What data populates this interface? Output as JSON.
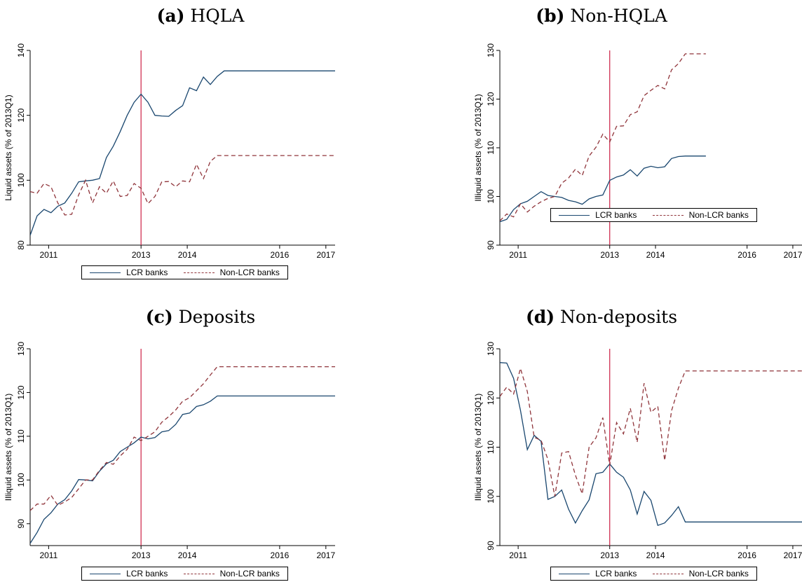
{
  "colors": {
    "lcr": "#1a476f",
    "non_lcr": "#90353b",
    "vline": "#cc1f44",
    "axis": "#000000"
  },
  "chart_data": [
    {
      "type": "line",
      "panel_label": "(a)",
      "title": "HQLA",
      "xlabel": "",
      "ylabel": "Liquid assets (% of 2013Q1)",
      "xlim": [
        2010.6,
        2017.2
      ],
      "ylim": [
        80,
        140
      ],
      "x_ticks": [
        2011,
        2013,
        2014,
        2016,
        2017
      ],
      "y_ticks": [
        80,
        100,
        120,
        140
      ],
      "vline_x": 2013,
      "grid": false,
      "legend": "bottom",
      "x": [
        2010.6,
        2010.75,
        2010.9,
        2011.05,
        2011.2,
        2011.35,
        2011.5,
        2011.65,
        2011.8,
        2011.95,
        2012.1,
        2012.25,
        2012.4,
        2012.55,
        2012.7,
        2012.85,
        2013.0,
        2013.15,
        2013.3,
        2013.45,
        2013.6,
        2013.75,
        2013.9,
        2014.05,
        2014.2,
        2014.35,
        2014.5,
        2014.65,
        2014.8,
        2014.95,
        2015.1,
        2015.25,
        2015.4,
        2015.55,
        2015.7,
        2015.85,
        2016.0,
        2016.15,
        2016.3,
        2016.45,
        2016.6,
        2016.75,
        2016.9,
        2017.05,
        2017.2
      ],
      "series": [
        {
          "name": "LCR banks",
          "values": [
            83,
            89,
            91,
            90,
            92,
            93,
            96,
            99.5,
            99.8,
            100,
            100.5,
            107,
            110.5,
            115,
            120,
            124,
            126.5,
            124,
            120,
            119.8,
            119.7,
            121.5,
            123,
            128.5,
            127.6,
            131.8,
            129.5,
            132,
            133.7,
            133.7,
            133.7,
            133.7,
            133.7,
            133.7,
            133.7,
            133.7,
            133.7,
            133.7,
            133.7,
            133.7,
            133.7,
            133.7,
            133.7,
            133.7,
            133.7
          ]
        },
        {
          "name": "Non-LCR banks",
          "values": [
            96.5,
            96,
            99,
            98,
            93,
            89.3,
            89.5,
            95.5,
            100,
            93,
            98,
            96,
            99.8,
            95,
            95.3,
            99,
            97.5,
            92.8,
            95,
            99.5,
            99.6,
            98,
            99.8,
            99.5,
            104.9,
            100.5,
            105.8,
            107.6,
            107.6,
            107.6,
            107.6,
            107.6,
            107.6,
            107.6,
            107.6,
            107.6,
            107.6,
            107.6,
            107.6,
            107.6,
            107.6,
            107.6,
            107.6,
            107.6,
            107.6
          ]
        }
      ]
    },
    {
      "type": "line",
      "panel_label": "(b)",
      "title": "Non-HQLA",
      "xlabel": "",
      "ylabel": "Illiquid assets (% of 2013Q1)",
      "xlim": [
        2010.6,
        2017.2
      ],
      "ylim": [
        90,
        130
      ],
      "x_ticks": [
        2011,
        2013,
        2014,
        2016,
        2017
      ],
      "y_ticks": [
        90,
        100,
        110,
        120,
        130
      ],
      "vline_x": 2013,
      "grid": false,
      "legend": "bottom",
      "x": [
        2010.6,
        2010.75,
        2010.9,
        2011.05,
        2011.2,
        2011.35,
        2011.5,
        2011.65,
        2011.8,
        2011.95,
        2012.1,
        2012.25,
        2012.4,
        2012.55,
        2012.7,
        2012.85,
        2013.0,
        2013.15,
        2013.3,
        2013.45,
        2013.6,
        2013.75,
        2013.9,
        2014.05,
        2014.2,
        2014.35,
        2014.5,
        2014.65,
        2014.8,
        2014.95,
        2015.1
      ],
      "series": [
        {
          "name": "LCR banks",
          "values": [
            94.8,
            95.3,
            97.3,
            98.5,
            99,
            100,
            101,
            100.2,
            100,
            99.8,
            99.2,
            98.9,
            98.4,
            99.5,
            100,
            100.3,
            103.3,
            104,
            104.4,
            105.5,
            104.2,
            105.8,
            106.2,
            105.9,
            106.1,
            107.8,
            108.2,
            108.3,
            108.3,
            108.3,
            108.3
          ]
        },
        {
          "name": "Non-LCR banks",
          "values": [
            95,
            96.4,
            95.8,
            98.5,
            96.8,
            98,
            98.9,
            99.6,
            100,
            102.7,
            103.8,
            105.6,
            104.3,
            108.3,
            110.1,
            112.8,
            111.2,
            114.4,
            114.5,
            116.8,
            117.4,
            120.7,
            121.8,
            122.8,
            122.1,
            126,
            127.3,
            129.3,
            129.3,
            129.3,
            129.3
          ]
        }
      ]
    },
    {
      "type": "line",
      "panel_label": "(c)",
      "title": "Deposits",
      "xlabel": "",
      "ylabel": "Illiquid assets (% of 2013Q1)",
      "xlim": [
        2010.6,
        2017.2
      ],
      "ylim": [
        85,
        130
      ],
      "x_ticks": [
        2011,
        2013,
        2014,
        2016,
        2017
      ],
      "y_ticks": [
        90,
        100,
        110,
        120,
        130
      ],
      "vline_x": 2013,
      "grid": false,
      "legend": "bottom",
      "x": [
        2010.6,
        2010.75,
        2010.9,
        2011.05,
        2011.2,
        2011.35,
        2011.5,
        2011.65,
        2011.8,
        2011.95,
        2012.1,
        2012.25,
        2012.4,
        2012.55,
        2012.7,
        2012.85,
        2013.0,
        2013.15,
        2013.3,
        2013.45,
        2013.6,
        2013.75,
        2013.9,
        2014.05,
        2014.2,
        2014.35,
        2014.5,
        2014.65,
        2014.8,
        2014.95,
        2015.1,
        2015.25,
        2015.4,
        2015.55,
        2015.7,
        2015.85,
        2016.0,
        2016.15,
        2016.3,
        2016.45,
        2016.6,
        2016.75,
        2016.9,
        2017.05,
        2017.2
      ],
      "series": [
        {
          "name": "LCR banks",
          "values": [
            85.5,
            88,
            91,
            92.5,
            94.5,
            95.5,
            97.5,
            100.1,
            100,
            99.8,
            102,
            103.7,
            104.5,
            106.5,
            107.5,
            108.5,
            109.8,
            109.4,
            109.7,
            111,
            111.3,
            112.7,
            115,
            115.3,
            116.8,
            117.2,
            118,
            119.2,
            119.2,
            119.2,
            119.2,
            119.2,
            119.2,
            119.2,
            119.2,
            119.2,
            119.2,
            119.2,
            119.2,
            119.2,
            119.2,
            119.2,
            119.2,
            119.2,
            119.2
          ]
        },
        {
          "name": "Non-LCR banks",
          "values": [
            93,
            94.5,
            94.5,
            96.5,
            94.2,
            95,
            96,
            98,
            100,
            100,
            102.2,
            104,
            103.6,
            105.5,
            107,
            109.8,
            109,
            110,
            111,
            113.2,
            114.5,
            116,
            118,
            118.8,
            120.4,
            122,
            124,
            125.9,
            125.9,
            125.9,
            125.9,
            125.9,
            125.9,
            125.9,
            125.9,
            125.9,
            125.9,
            125.9,
            125.9,
            125.9,
            125.9,
            125.9,
            125.9,
            125.9,
            125.9
          ]
        }
      ]
    },
    {
      "type": "line",
      "panel_label": "(d)",
      "title": "Non-deposits",
      "xlabel": "",
      "ylabel": "Illiquid assets (% of 2013Q1)",
      "xlim": [
        2010.6,
        2017.2
      ],
      "ylim": [
        90,
        130
      ],
      "x_ticks": [
        2011,
        2013,
        2014,
        2016,
        2017
      ],
      "y_ticks": [
        90,
        100,
        110,
        120,
        130
      ],
      "vline_x": 2013,
      "grid": false,
      "legend": "bottom",
      "x": [
        2010.6,
        2010.75,
        2010.9,
        2011.05,
        2011.2,
        2011.35,
        2011.5,
        2011.65,
        2011.8,
        2011.95,
        2012.1,
        2012.25,
        2012.4,
        2012.55,
        2012.7,
        2012.85,
        2013.0,
        2013.15,
        2013.3,
        2013.45,
        2013.6,
        2013.75,
        2013.9,
        2014.05,
        2014.2,
        2014.35,
        2014.5,
        2014.65,
        2014.8,
        2014.95,
        2015.1,
        2015.25,
        2015.4,
        2015.55,
        2015.7,
        2015.85,
        2016.0,
        2016.15,
        2016.3,
        2016.45,
        2016.6,
        2016.75,
        2016.9,
        2017.05,
        2017.2
      ],
      "series": [
        {
          "name": "LCR banks",
          "values": [
            127.2,
            127.1,
            124,
            117.5,
            109.5,
            112.4,
            111.2,
            99.4,
            100,
            101.3,
            97.4,
            94.6,
            97.1,
            99.3,
            104.6,
            104.9,
            106.6,
            104.9,
            103.9,
            101.3,
            96.4,
            101,
            99.2,
            94.1,
            94.6,
            96.1,
            97.9,
            94.8,
            94.8,
            94.8,
            94.8,
            94.8,
            94.8,
            94.8,
            94.8,
            94.8,
            94.8,
            94.8,
            94.8,
            94.8,
            94.8,
            94.8,
            94.8,
            94.8,
            94.8
          ]
        },
        {
          "name": "Non-LCR banks",
          "values": [
            120.3,
            122.2,
            120.8,
            126,
            121.3,
            112,
            111.4,
            107.5,
            100,
            108.8,
            109.1,
            104.3,
            100.5,
            110,
            111.9,
            116,
            106.3,
            115,
            112.7,
            117.9,
            111,
            123,
            117.1,
            118.3,
            107.3,
            117.4,
            122,
            125.5,
            125.5,
            125.5,
            125.5,
            125.5,
            125.5,
            125.5,
            125.5,
            125.5,
            125.5,
            125.5,
            125.5,
            125.5,
            125.5,
            125.5,
            125.5,
            125.5,
            125.5
          ]
        }
      ]
    }
  ]
}
